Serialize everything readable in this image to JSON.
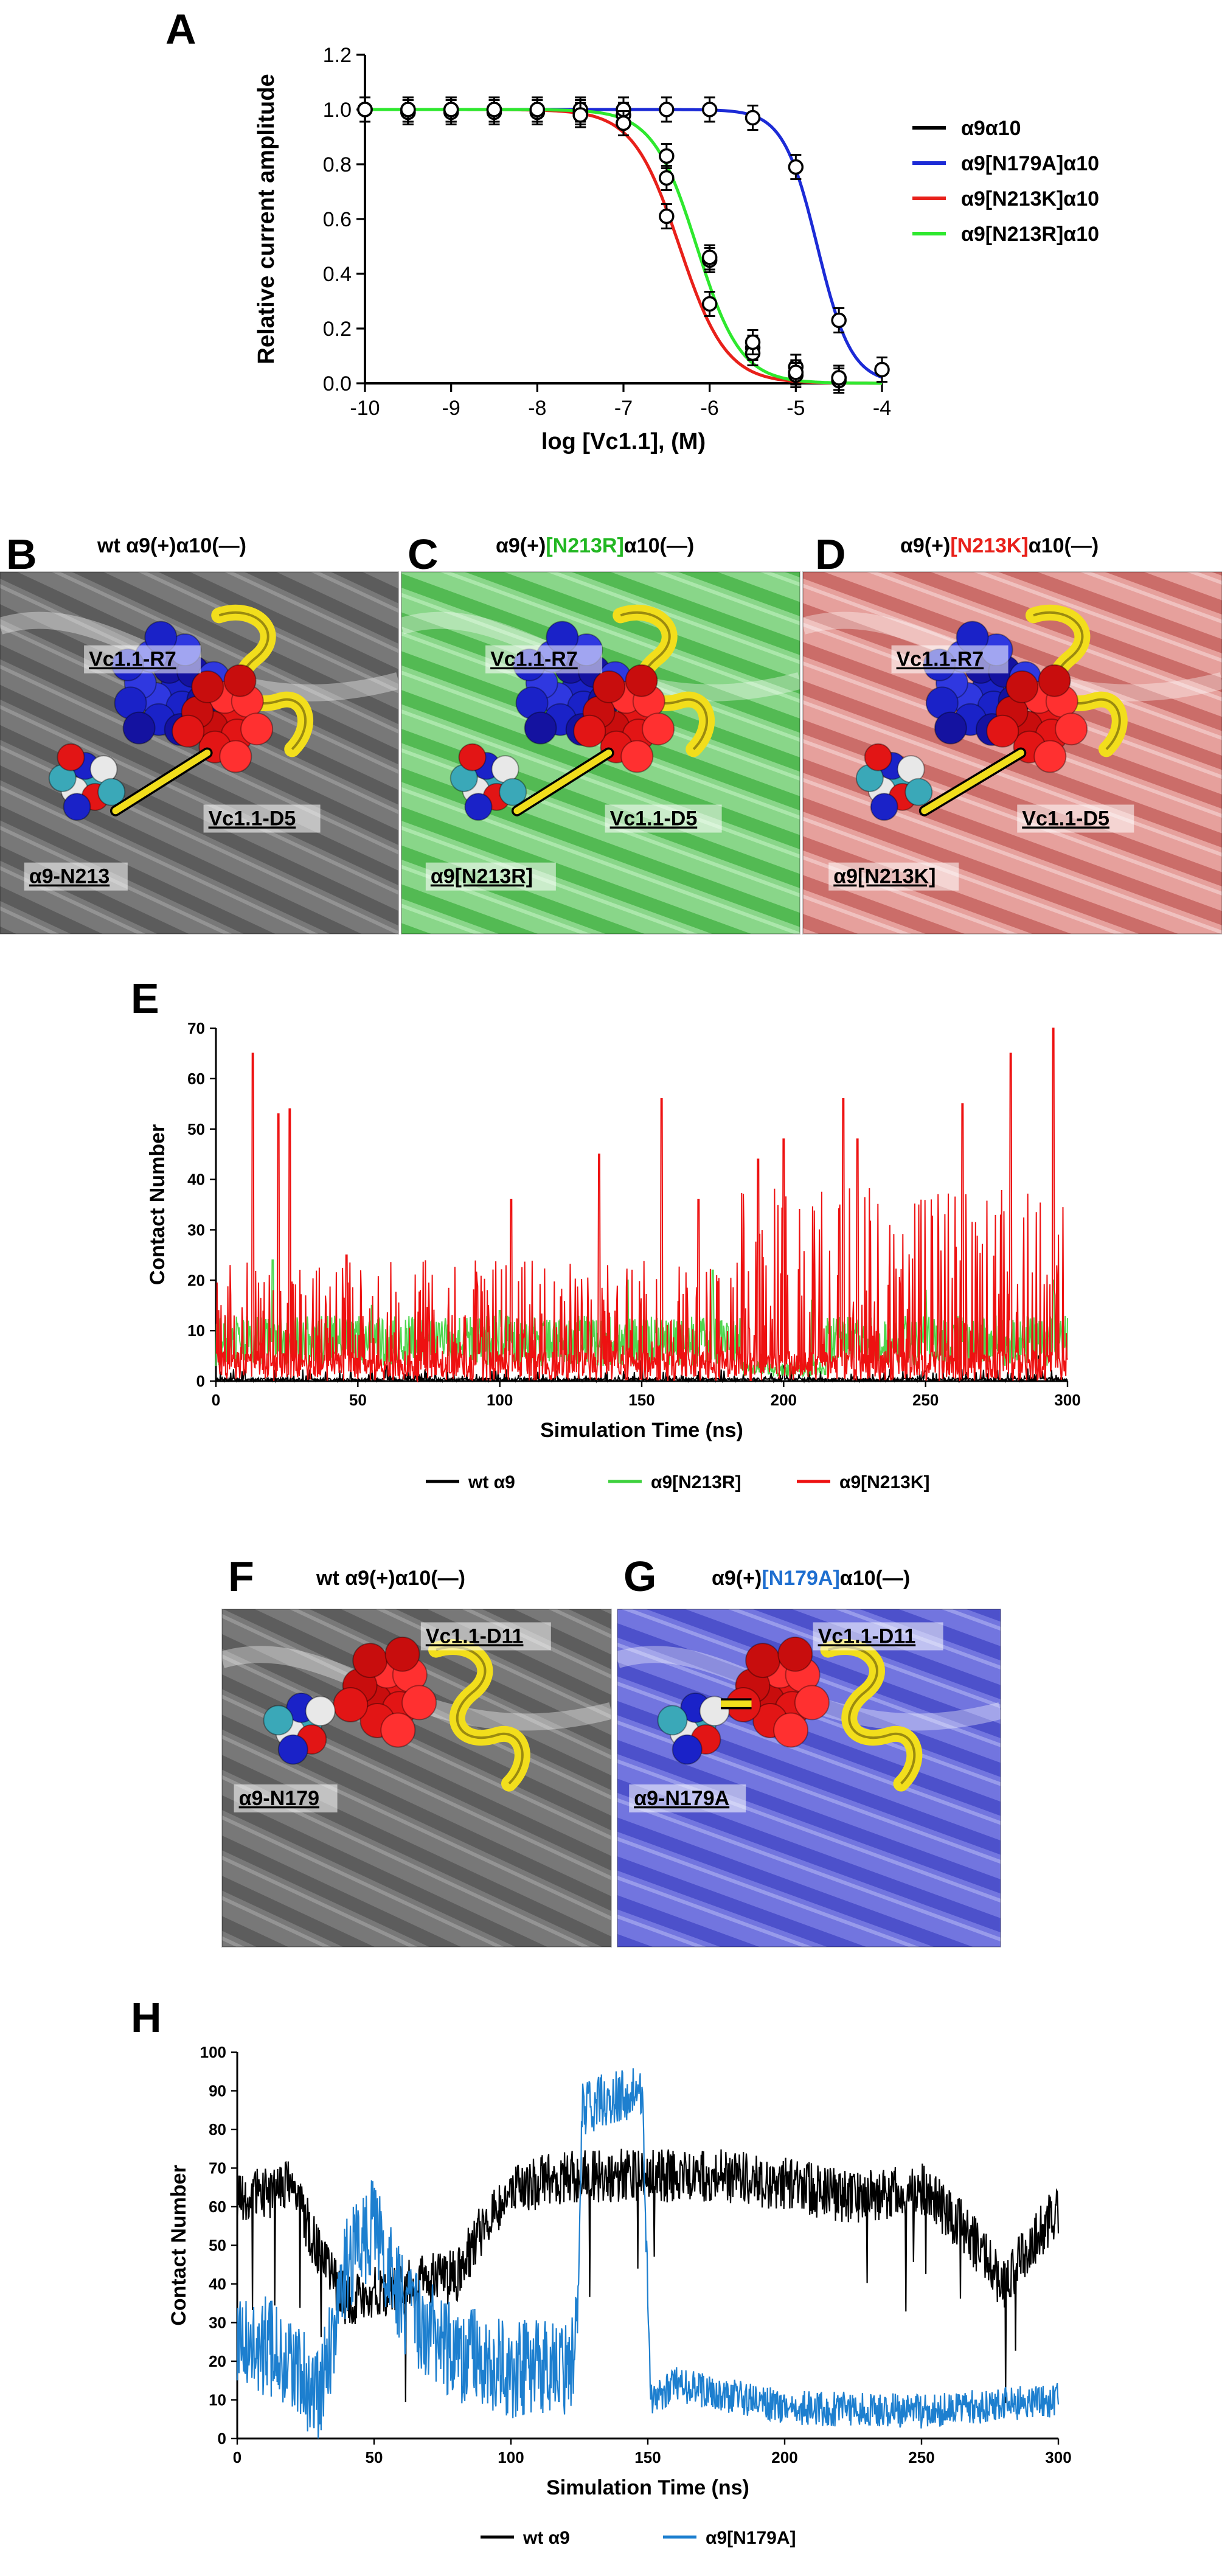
{
  "chart_data": [
    {
      "id": "A",
      "panel_letter": "A",
      "type": "scatter",
      "xlabel": "log [Vc1.1], (M)",
      "ylabel": "Relative current amplitude",
      "xlim": [
        -10,
        -4
      ],
      "ylim": [
        0,
        1.2
      ],
      "xticks": [
        "-10",
        "-9",
        "-8",
        "-7",
        "-6",
        "-5",
        "-4"
      ],
      "yticks": [
        "0.0",
        "0.2",
        "0.4",
        "0.6",
        "0.8",
        "1.0",
        "1.2"
      ],
      "legend_position": "right",
      "series": [
        {
          "name": "α9α10",
          "color": "#000000",
          "x": [
            -10,
            -9.5,
            -9,
            -8.5,
            -8,
            -7.5,
            -7,
            -6.5,
            -6,
            -5.5,
            -5,
            -4.5
          ],
          "y": [
            1.0,
            0.99,
            1.0,
            1.0,
            0.99,
            0.99,
            0.98,
            0.83,
            0.45,
            0.13,
            0.06,
            0.02
          ]
        },
        {
          "name": "α9[N179A]α10",
          "color": "#1c2bd6",
          "x": [
            -10,
            -9.5,
            -9,
            -8.5,
            -8,
            -7.5,
            -7,
            -6.5,
            -6,
            -5.5,
            -5,
            -4.5,
            -4
          ],
          "y": [
            1.0,
            1.0,
            1.0,
            1.0,
            1.0,
            1.0,
            1.0,
            1.0,
            1.0,
            0.97,
            0.79,
            0.23,
            0.05
          ]
        },
        {
          "name": "α9[N213K]α10",
          "color": "#e8201a",
          "x": [
            -10,
            -9.5,
            -9,
            -8.5,
            -8,
            -7.5,
            -7,
            -6.5,
            -6,
            -5.5,
            -5,
            -4.5
          ],
          "y": [
            1.0,
            0.99,
            0.99,
            0.99,
            0.99,
            0.98,
            0.95,
            0.61,
            0.29,
            0.11,
            0.03,
            0.01
          ]
        },
        {
          "name": "α9[N213R]α10",
          "color": "#2ee82e",
          "x": [
            -10,
            -9.5,
            -9,
            -8.5,
            -8,
            -7.5,
            -7,
            -6.5,
            -6,
            -5.5,
            -5,
            -4.5
          ],
          "y": [
            1.0,
            1.0,
            1.0,
            1.0,
            1.0,
            0.98,
            0.95,
            0.75,
            0.46,
            0.15,
            0.04,
            0.02
          ]
        }
      ],
      "fits": [
        {
          "color": "#1c2bd6",
          "ic50_log": -4.75,
          "hill": 2.2
        },
        {
          "color": "#e8201a",
          "ic50_log": -6.35,
          "hill": 1.6
        },
        {
          "color": "#2ee82e",
          "ic50_log": -6.15,
          "hill": 1.7
        }
      ]
    },
    {
      "id": "E",
      "panel_letter": "E",
      "type": "line",
      "xlabel": "Simulation Time (ns)",
      "ylabel": "Contact Number",
      "xlim": [
        0,
        300
      ],
      "ylim": [
        0,
        70
      ],
      "xticks": [
        "0",
        "50",
        "100",
        "150",
        "200",
        "250",
        "300"
      ],
      "yticks": [
        "0",
        "10",
        "20",
        "30",
        "40",
        "50",
        "60",
        "70"
      ],
      "legend_position": "bottom",
      "series": [
        {
          "name": "wt α9",
          "color": "#000000",
          "baseline": 1,
          "peaks": [
            [
              10,
              2
            ],
            [
              60,
              3
            ],
            [
              120,
              2
            ],
            [
              150,
              4
            ],
            [
              200,
              3
            ],
            [
              250,
              2
            ],
            [
              290,
              5
            ]
          ]
        },
        {
          "name": "α9[N213R]",
          "color": "#3ed13e",
          "baseline": 8,
          "peaks": [
            [
              20,
              24
            ],
            [
              55,
              15
            ],
            [
              100,
              14
            ],
            [
              145,
              20
            ],
            [
              175,
              22
            ],
            [
              210,
              16
            ],
            [
              250,
              18
            ],
            [
              295,
              20
            ]
          ]
        },
        {
          "name": "α9[N213K]",
          "color": "#ee1111",
          "baseline": 3,
          "peaks": [
            [
              13,
              65
            ],
            [
              22,
              53
            ],
            [
              26,
              54
            ],
            [
              46,
              25
            ],
            [
              104,
              36
            ],
            [
              135,
              45
            ],
            [
              157,
              56
            ],
            [
              170,
              36
            ],
            [
              191,
              44
            ],
            [
              200,
              48
            ],
            [
              221,
              56
            ],
            [
              226,
              48
            ],
            [
              263,
              55
            ],
            [
              280,
              65
            ],
            [
              295,
              71
            ]
          ]
        }
      ]
    },
    {
      "id": "H",
      "panel_letter": "H",
      "type": "line",
      "xlabel": "Simulation Time (ns)",
      "ylabel": "Contact Number",
      "xlim": [
        0,
        300
      ],
      "ylim": [
        0,
        100
      ],
      "xticks": [
        "0",
        "50",
        "100",
        "150",
        "200",
        "250",
        "300"
      ],
      "yticks": [
        "0",
        "10",
        "20",
        "30",
        "40",
        "50",
        "60",
        "70",
        "80",
        "90",
        "100"
      ],
      "legend_position": "bottom",
      "series": [
        {
          "name": "wt α9",
          "color": "#000000",
          "x": [
            0,
            20,
            30,
            40,
            60,
            80,
            90,
            100,
            125,
            150,
            175,
            200,
            225,
            250,
            265,
            280,
            300
          ],
          "y": [
            62,
            65,
            48,
            35,
            40,
            42,
            55,
            65,
            68,
            68,
            68,
            66,
            62,
            65,
            55,
            40,
            60
          ]
        },
        {
          "name": "α9[N179A]",
          "color": "#1d7fcf",
          "x": [
            0,
            20,
            30,
            40,
            50,
            60,
            80,
            100,
            120,
            124,
            126,
            135,
            148,
            151,
            160,
            200,
            250,
            300
          ],
          "y": [
            28,
            20,
            10,
            45,
            55,
            35,
            22,
            18,
            18,
            25,
            85,
            88,
            90,
            10,
            14,
            8,
            7,
            10
          ]
        }
      ]
    }
  ],
  "structure_panels": [
    {
      "id": "B",
      "letter": "B",
      "title": "wt α9(+)α10(—)",
      "bg": "#6a6a6a",
      "labels": [
        "Vc1.1-R7",
        "Vc1.1-D5",
        "α9-N213"
      ]
    },
    {
      "id": "C",
      "letter": "C",
      "title_pre": "α9(+)",
      "title_mut": "[N213R]",
      "title_post": "α10(—)",
      "mut_color": "#22b722",
      "bg": "#68c868",
      "labels": [
        "Vc1.1-R7",
        "Vc1.1-D5",
        "α9[N213R]"
      ]
    },
    {
      "id": "D",
      "letter": "D",
      "title_pre": "α9(+)",
      "title_mut": "[N213K]",
      "title_post": "α10(—)",
      "mut_color": "#e8201a",
      "bg": "#d9807c",
      "labels": [
        "Vc1.1-R7",
        "Vc1.1-D5",
        "α9[N213K]"
      ]
    },
    {
      "id": "F",
      "letter": "F",
      "title": "wt α9(+)α10(—)",
      "bg": "#6f6f6f",
      "labels": [
        "Vc1.1-D11",
        "α9-N179"
      ]
    },
    {
      "id": "G",
      "letter": "G",
      "title_pre": "α9(+)",
      "title_mut": "[N179A]",
      "title_post": "α10(—)",
      "mut_color": "#1f6fd0",
      "bg": "#5b5fd8",
      "labels": [
        "Vc1.1-D11",
        "α9-N179A"
      ]
    }
  ]
}
